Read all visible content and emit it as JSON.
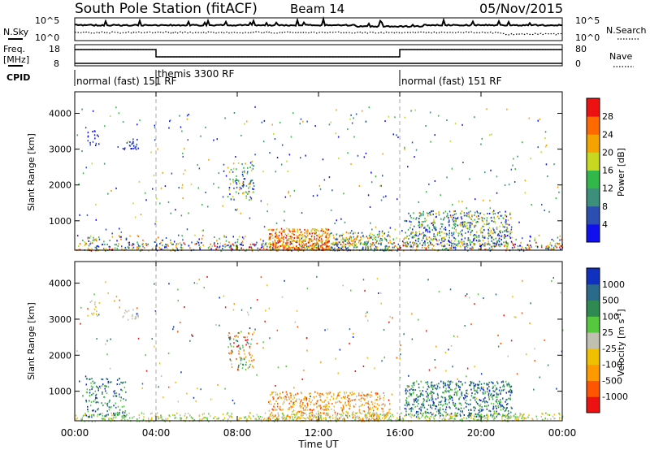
{
  "header": {
    "station": "South Pole Station (fitACF)",
    "beam": "Beam 14",
    "date": "05/Nov/2015"
  },
  "sky_panel": {
    "left_label": "N.Sky",
    "left_ticks": [
      "10^5",
      "10^0"
    ],
    "right_label": "N.Search",
    "right_ticks": [
      "10^5",
      "10^0"
    ]
  },
  "freq_panel": {
    "left_label_1": "Freq.",
    "left_label_2": "[MHz]",
    "left_ticks": [
      "18",
      "8"
    ],
    "right_label": "Nave",
    "right_ticks": [
      "80",
      "0"
    ]
  },
  "cpid": {
    "label": "CPID",
    "segments": [
      {
        "label": "normal (fast) 151 RF",
        "start": 0,
        "end": 4
      },
      {
        "label": "themis 3300 RF",
        "start": 4,
        "end": 16
      },
      {
        "label": "normal (fast) 151 RF",
        "start": 16,
        "end": 24
      }
    ]
  },
  "chart_data": [
    {
      "type": "heatmap",
      "title": "",
      "ylabel": "Slant Range [km]",
      "xlabel": "",
      "xlim": [
        0,
        24
      ],
      "ylim": [
        180,
        4600
      ],
      "yticks": [
        "1000",
        "2000",
        "3000",
        "4000"
      ],
      "colorbar": {
        "label": "Power [dB]",
        "ticks": [
          "4",
          "8",
          "12",
          "16",
          "20",
          "24",
          "28"
        ],
        "colors": [
          "#1010ee",
          "#2b4fb0",
          "#3c8f7a",
          "#32b84a",
          "#c8d820",
          "#f5a300",
          "#ff6a00",
          "#ee1111"
        ]
      },
      "features": [
        {
          "desc": "near-range scatter",
          "x": [
            0,
            24
          ],
          "y": [
            180,
            600
          ],
          "level": "mixed"
        },
        {
          "desc": "strong scatter",
          "x": [
            9.5,
            12.5
          ],
          "y": [
            180,
            800
          ],
          "level": "high"
        },
        {
          "desc": "patch",
          "x": [
            0.5,
            1.2
          ],
          "y": [
            3100,
            3500
          ],
          "level": "low"
        },
        {
          "desc": "patch",
          "x": [
            2.2,
            3.1
          ],
          "y": [
            3000,
            3300
          ],
          "level": "low"
        },
        {
          "desc": "patch",
          "x": [
            7.5,
            8.8
          ],
          "y": [
            1600,
            2700
          ],
          "level": "mid"
        },
        {
          "desc": "patch",
          "x": [
            16.3,
            21.5
          ],
          "y": [
            400,
            1300
          ],
          "level": "mid"
        }
      ]
    },
    {
      "type": "heatmap",
      "title": "",
      "ylabel": "Slant Range [km]",
      "xlabel": "Time UT",
      "xlim": [
        0,
        24
      ],
      "ylim": [
        180,
        4600
      ],
      "xticks": [
        "00:00",
        "04:00",
        "08:00",
        "12:00",
        "16:00",
        "20:00",
        "00:00"
      ],
      "yticks": [
        "1000",
        "2000",
        "3000",
        "4000"
      ],
      "colorbar": {
        "label": "Velocity [m s-1]",
        "label_main": "Velocity [m s",
        "label_exp": "-1",
        "label_end": "]",
        "ticks": [
          "1000",
          "500",
          "100",
          "25",
          "-25",
          "-100",
          "-500",
          "-1000"
        ],
        "colors": [
          "#1030c0",
          "#2a6a8a",
          "#2e8a50",
          "#55c840",
          "#c0c0b0",
          "#f0c000",
          "#ff9900",
          "#ff5500",
          "#ee1111"
        ]
      },
      "features": [
        {
          "desc": "near-range grey scatter",
          "x": [
            0,
            24
          ],
          "y": [
            180,
            500
          ],
          "level": "low"
        },
        {
          "desc": "green scatter",
          "x": [
            9.5,
            15.5
          ],
          "y": [
            180,
            1000
          ],
          "level": "positive"
        },
        {
          "desc": "orange patch",
          "x": [
            0.5,
            2.5
          ],
          "y": [
            300,
            1400
          ],
          "level": "negative"
        },
        {
          "desc": "patch",
          "x": [
            16.3,
            21.5
          ],
          "y": [
            300,
            1300
          ],
          "level": "negative"
        },
        {
          "desc": "patch",
          "x": [
            7.5,
            8.8
          ],
          "y": [
            1600,
            2700
          ],
          "level": "mixed"
        }
      ]
    }
  ]
}
